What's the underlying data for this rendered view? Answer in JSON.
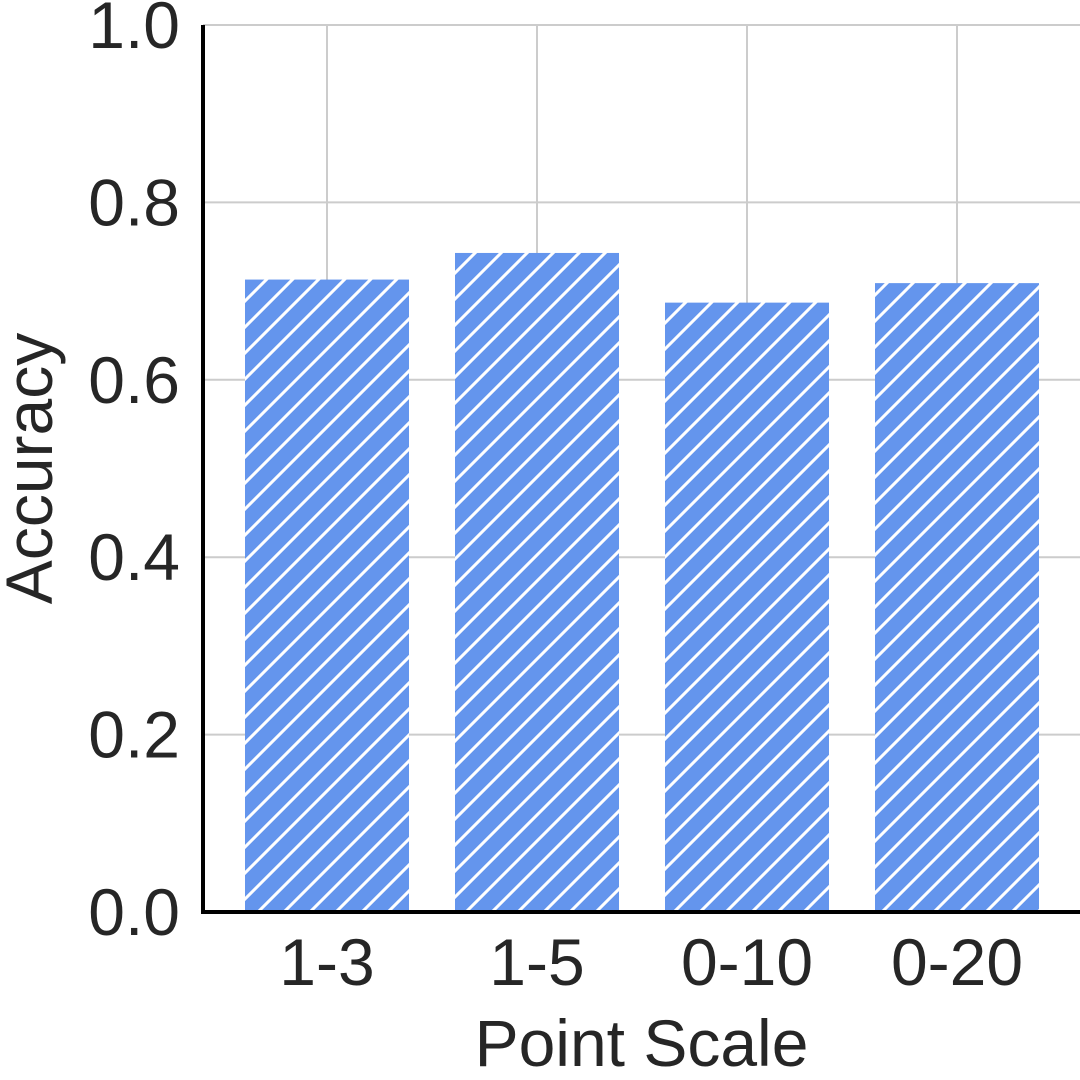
{
  "chart_data": {
    "type": "bar",
    "categories": [
      "1-3",
      "1-5",
      "0-10",
      "0-20"
    ],
    "values": [
      0.713,
      0.743,
      0.687,
      0.709
    ],
    "title": "",
    "xlabel": "Point Scale",
    "ylabel": "Accuracy",
    "ylim": [
      0,
      1
    ],
    "yticks": [
      "0.0",
      "0.2",
      "0.4",
      "0.6",
      "0.8",
      "1.0"
    ],
    "ytick_values": [
      0,
      0.2,
      0.4,
      0.6,
      0.8,
      1.0
    ],
    "grid": true,
    "bar_color": "#6495ED",
    "hatch": "diagonal",
    "hatch_color": "#ffffff"
  }
}
